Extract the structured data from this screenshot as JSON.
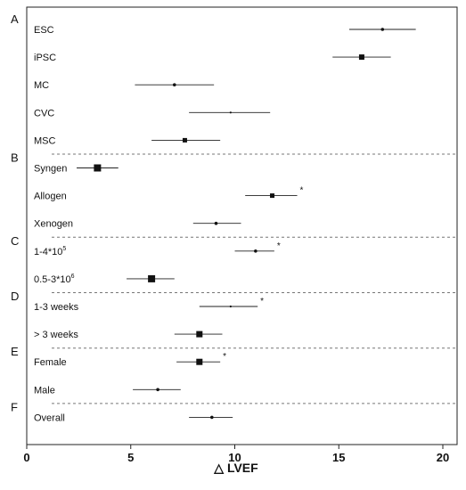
{
  "chart_data": {
    "type": "scatter",
    "subtype": "forest-plot",
    "xlabel": "△ LVEF",
    "xlim": [
      0,
      20
    ],
    "xticks": [
      "0",
      "5",
      "10",
      "15",
      "20"
    ],
    "grid": false,
    "sections": [
      {
        "label": "A",
        "rows": [
          {
            "label": "ESC",
            "estimate": 17.1,
            "lower": 15.5,
            "upper": 18.7,
            "weight": 1,
            "significant": false
          },
          {
            "label": "iPSC",
            "estimate": 16.1,
            "lower": 14.7,
            "upper": 17.5,
            "weight": 2,
            "significant": false
          },
          {
            "label": "MC",
            "estimate": 7.1,
            "lower": 5.2,
            "upper": 9.0,
            "weight": 1,
            "significant": false
          },
          {
            "label": "CVC",
            "estimate": 9.8,
            "lower": 7.8,
            "upper": 11.7,
            "weight": 0.5,
            "significant": false
          },
          {
            "label": "MSC",
            "estimate": 7.6,
            "lower": 6.0,
            "upper": 9.3,
            "weight": 1.5,
            "significant": false
          }
        ]
      },
      {
        "label": "B",
        "rows": [
          {
            "label": "Syngen",
            "estimate": 3.4,
            "lower": 2.4,
            "upper": 4.4,
            "weight": 3,
            "significant": false
          },
          {
            "label": "Allogen",
            "estimate": 11.8,
            "lower": 10.5,
            "upper": 13.0,
            "weight": 1.5,
            "significant": true
          },
          {
            "label": "Xenogen",
            "estimate": 9.1,
            "lower": 8.0,
            "upper": 10.3,
            "weight": 1,
            "significant": false
          }
        ]
      },
      {
        "label": "C",
        "rows": [
          {
            "label": "1-4*10",
            "sup": "5",
            "estimate": 11.0,
            "lower": 10.0,
            "upper": 11.9,
            "weight": 1,
            "significant": true
          },
          {
            "label": "0.5-3*10",
            "sup": "6",
            "estimate": 6.0,
            "lower": 4.8,
            "upper": 7.1,
            "weight": 3,
            "significant": false
          }
        ]
      },
      {
        "label": "D",
        "rows": [
          {
            "label": "1-3 weeks",
            "estimate": 9.8,
            "lower": 8.3,
            "upper": 11.1,
            "weight": 0.5,
            "significant": true
          },
          {
            "label": "> 3 weeks",
            "estimate": 8.3,
            "lower": 7.1,
            "upper": 9.4,
            "weight": 2.5,
            "significant": false
          }
        ]
      },
      {
        "label": "E",
        "rows": [
          {
            "label": "Female",
            "estimate": 8.3,
            "lower": 7.2,
            "upper": 9.3,
            "weight": 2.5,
            "significant": true
          },
          {
            "label": "Male",
            "estimate": 6.3,
            "lower": 5.1,
            "upper": 7.4,
            "weight": 1,
            "significant": false
          }
        ]
      },
      {
        "label": "F",
        "rows": [
          {
            "label": "Overall",
            "estimate": 8.9,
            "lower": 7.8,
            "upper": 9.9,
            "weight": 1,
            "significant": false
          }
        ]
      }
    ],
    "significance_marker": "*"
  }
}
